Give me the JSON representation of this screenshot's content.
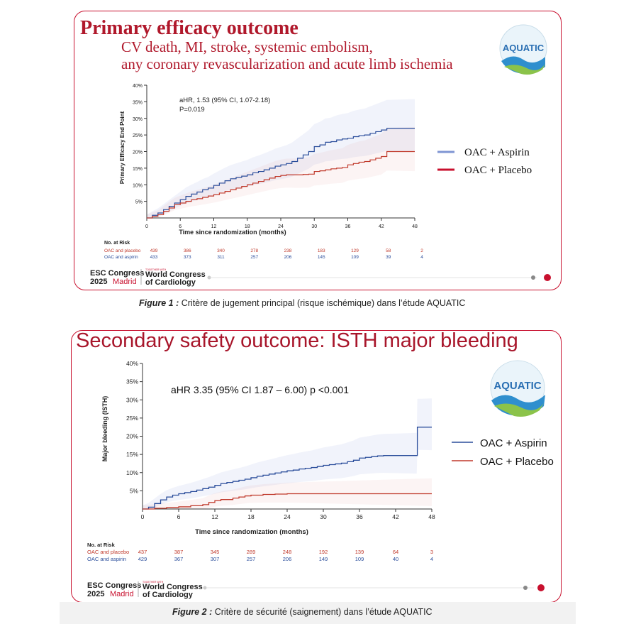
{
  "panel1": {
    "title": "Primary efficacy outcome",
    "subtitle_line1": "CV death, MI, stroke, systemic embolism,",
    "subtitle_line2": "any coronary revascularization and acute limb ischemia",
    "logo_text": "AQUATIC",
    "annotation_line1": "aHR, 1.53 (95% CI, 1.07-2.18)",
    "annotation_line2": "P=0.019",
    "legend": [
      "OAC + Aspirin",
      "OAC + Placebo"
    ],
    "risk_title": "No. at Risk",
    "risk_rows": [
      {
        "label": "OAC and placebo",
        "values": [
          "439",
          "386",
          "340",
          "278",
          "238",
          "183",
          "129",
          "58",
          "2"
        ],
        "color": "#c0392b"
      },
      {
        "label": "OAC and aspirin",
        "values": [
          "433",
          "373",
          "311",
          "257",
          "206",
          "145",
          "109",
          "39",
          "4"
        ],
        "color": "#2a4d9b"
      }
    ],
    "caption_bold": "Figure 1 :",
    "caption_text": " Critère de jugement principal (risque ischémique) dans l’étude AQUATIC"
  },
  "panel2": {
    "title": "Secondary safety outcome: ISTH major bleeding",
    "logo_text": "AQUATIC",
    "annotation": "aHR 3.35 (95% CI 1.87 – 6.00) p <0.001",
    "legend": [
      "OAC + Aspirin",
      "OAC + Placebo"
    ],
    "risk_title": "No. at Risk",
    "risk_rows": [
      {
        "label": "OAC and placebo",
        "values": [
          "437",
          "387",
          "345",
          "289",
          "248",
          "192",
          "139",
          "64",
          "3"
        ],
        "color": "#c0392b"
      },
      {
        "label": "OAC and aspirin",
        "values": [
          "429",
          "367",
          "307",
          "257",
          "206",
          "149",
          "109",
          "40",
          "4"
        ],
        "color": "#2a4d9b"
      }
    ],
    "caption_bold": "Figure 2 :",
    "caption_text": " Critère de sécurité (saignement) dans l’étude AQUATIC"
  },
  "congress": {
    "esc_line1": "ESC Congress",
    "esc_year": "2025",
    "esc_city": "Madrid",
    "together": "TOGETHER WITH",
    "wcc_line1": "World Congress",
    "wcc_line2": "of Cardiology"
  },
  "colors": {
    "aspirin": "#2a4d9b",
    "placebo": "#c0392b",
    "brand_red": "#c8102e"
  },
  "chart_data": [
    {
      "type": "line",
      "title": "",
      "xlabel": "Time since randomization (months)",
      "ylabel": "Primary Efficacy End Point",
      "xlim": [
        0,
        48
      ],
      "ylim": [
        0,
        40
      ],
      "xticks": [
        0,
        6,
        12,
        18,
        24,
        30,
        36,
        42,
        48
      ],
      "yticks": [
        5,
        10,
        15,
        20,
        25,
        30,
        35,
        40
      ],
      "ytick_labels": [
        "5%",
        "10%",
        "15%",
        "20%",
        "25%",
        "30%",
        "35%",
        "40%"
      ],
      "grid": false,
      "legend": "right",
      "series": [
        {
          "name": "OAC + Aspirin",
          "color": "#2a4d9b",
          "x": [
            0,
            1,
            2,
            3,
            4,
            5,
            6,
            7,
            8,
            9,
            10,
            11,
            12,
            13,
            14,
            15,
            16,
            17,
            18,
            19,
            20,
            21,
            22,
            23,
            24,
            25,
            26,
            27,
            28,
            29,
            30,
            31,
            32,
            33,
            34,
            35,
            36,
            37,
            38,
            39,
            40,
            41,
            42,
            43,
            48
          ],
          "y": [
            0,
            0.8,
            1.5,
            2.5,
            3.5,
            4.5,
            5.5,
            6.5,
            7.2,
            7.8,
            8.5,
            9,
            9.8,
            10.5,
            11.2,
            11.8,
            12.2,
            12.6,
            13,
            13.6,
            14,
            14.5,
            15,
            15.6,
            16,
            16.4,
            17,
            18,
            19,
            20,
            21.5,
            22,
            22.8,
            23,
            23.5,
            23.8,
            24,
            24.5,
            24.8,
            25,
            25.5,
            26,
            26.5,
            27,
            27
          ]
        },
        {
          "name": "OAC + Placebo",
          "color": "#c0392b",
          "x": [
            0,
            1,
            2,
            3,
            4,
            5,
            6,
            7,
            8,
            9,
            10,
            11,
            12,
            13,
            14,
            15,
            16,
            17,
            18,
            19,
            20,
            21,
            22,
            23,
            24,
            25,
            26,
            27,
            28,
            29,
            30,
            31,
            32,
            33,
            34,
            35,
            36,
            37,
            38,
            39,
            40,
            41,
            42,
            43,
            48
          ],
          "y": [
            0,
            0.5,
            1,
            2,
            3,
            4,
            4.5,
            5,
            5.5,
            5.8,
            6.2,
            6.6,
            7,
            7.5,
            8,
            8.5,
            9,
            9.5,
            10,
            10.5,
            11,
            11.5,
            12,
            12.5,
            12.8,
            13,
            13,
            13,
            13.1,
            13.2,
            14,
            14.2,
            14.5,
            14.8,
            15,
            15.2,
            16,
            16.4,
            16.8,
            17,
            17.5,
            18,
            18.5,
            20,
            20
          ]
        }
      ]
    },
    {
      "type": "line",
      "title": "",
      "xlabel": "Time since randomization (months)",
      "ylabel": "Major bleeding (ISTH)",
      "xlim": [
        0,
        48
      ],
      "ylim": [
        0,
        40
      ],
      "xticks": [
        0,
        6,
        12,
        18,
        24,
        30,
        36,
        42,
        48
      ],
      "yticks": [
        5,
        10,
        15,
        20,
        25,
        30,
        35,
        40
      ],
      "ytick_labels": [
        "5%",
        "10%",
        "15%",
        "20%",
        "25%",
        "30%",
        "35%",
        "40%"
      ],
      "grid": false,
      "legend": "right",
      "series": [
        {
          "name": "OAC + Aspirin",
          "color": "#2a4d9b",
          "x": [
            0,
            1,
            2,
            3,
            4,
            5,
            6,
            7,
            8,
            9,
            10,
            11,
            12,
            13,
            14,
            15,
            16,
            17,
            18,
            19,
            20,
            21,
            22,
            23,
            24,
            25,
            26,
            27,
            28,
            29,
            30,
            31,
            32,
            33,
            34,
            35,
            36,
            37,
            38,
            39,
            40,
            41,
            42,
            43,
            45.5,
            45.6,
            48
          ],
          "y": [
            0,
            0.5,
            1.5,
            2.5,
            3.3,
            3.8,
            4.2,
            4.5,
            4.8,
            5.2,
            5.6,
            6,
            6.5,
            7,
            7.3,
            7.6,
            7.9,
            8.2,
            8.6,
            9,
            9.3,
            9.6,
            9.9,
            10.2,
            10.5,
            10.7,
            11,
            11.2,
            11.4,
            11.7,
            12,
            12.2,
            12.4,
            12.6,
            13,
            13.4,
            14,
            14.2,
            14.4,
            14.6,
            14.7,
            14.7,
            14.7,
            14.7,
            14.7,
            22.5,
            22.5
          ]
        },
        {
          "name": "OAC + Placebo",
          "color": "#c0392b",
          "x": [
            0,
            2,
            4,
            6,
            8,
            10,
            11,
            12,
            13,
            15,
            16,
            17,
            18,
            20,
            22,
            24,
            30,
            36,
            42,
            48
          ],
          "y": [
            0,
            0.2,
            0.4,
            0.6,
            0.9,
            1.2,
            1.8,
            2.3,
            2.6,
            3,
            3.3,
            3.6,
            3.8,
            4,
            4.1,
            4.2,
            4.2,
            4.2,
            4.2,
            4.2
          ]
        }
      ]
    }
  ]
}
